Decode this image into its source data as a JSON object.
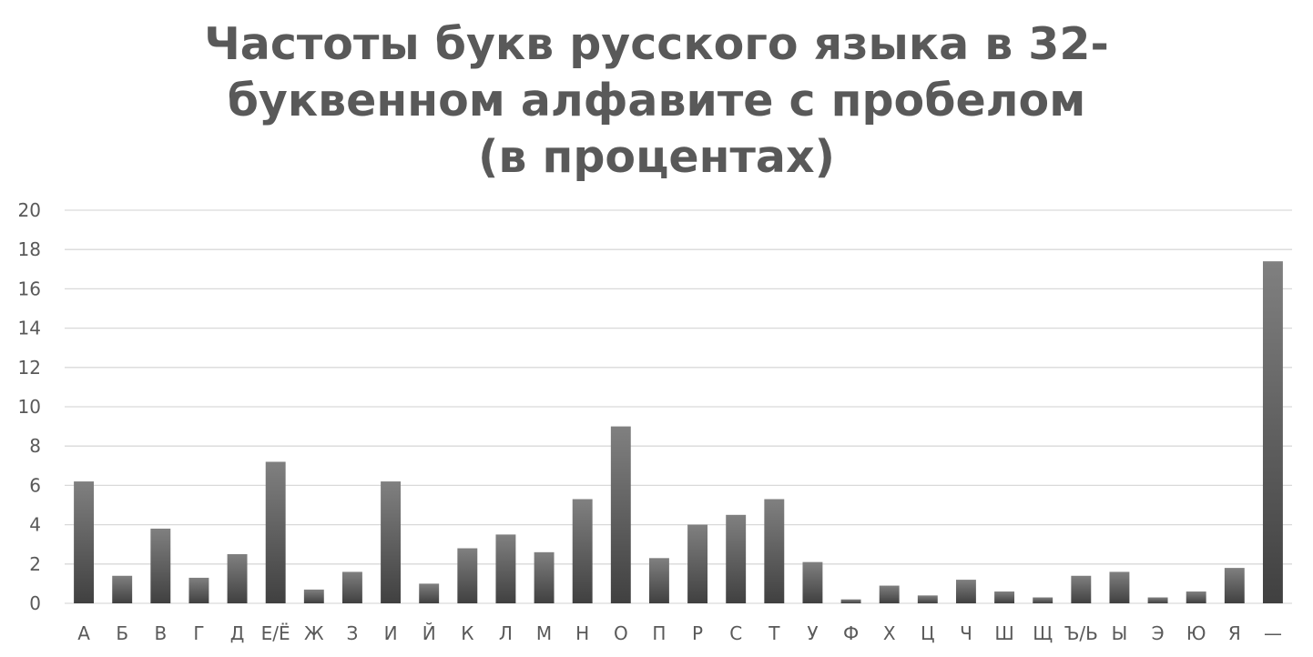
{
  "chart_data": {
    "type": "bar",
    "title": "Частоты букв русского языка в 32-\nбуквенном алфавите с пробелом\n(в процентах)",
    "xlabel": "",
    "ylabel": "",
    "ylim": [
      0,
      20
    ],
    "yticks": [
      0,
      2,
      4,
      6,
      8,
      10,
      12,
      14,
      16,
      18,
      20
    ],
    "grid": true,
    "legend": "none",
    "categories": [
      "А",
      "Б",
      "В",
      "Г",
      "Д",
      "Е/Ё",
      "Ж",
      "З",
      "И",
      "Й",
      "К",
      "Л",
      "М",
      "Н",
      "О",
      "П",
      "Р",
      "С",
      "Т",
      "У",
      "Ф",
      "Х",
      "Ц",
      "Ч",
      "Ш",
      "Щ",
      "Ъ/Ь",
      "Ы",
      "Э",
      "Ю",
      "Я",
      "—"
    ],
    "values": [
      6.2,
      1.4,
      3.8,
      1.3,
      2.5,
      7.2,
      0.7,
      1.6,
      6.2,
      1.0,
      2.8,
      3.5,
      2.6,
      5.3,
      9.0,
      2.3,
      4.0,
      4.5,
      5.3,
      2.1,
      0.2,
      0.9,
      0.4,
      1.2,
      0.6,
      0.3,
      1.4,
      1.6,
      0.3,
      0.6,
      1.8,
      17.4
    ],
    "colors": {
      "bar_top": "#808080",
      "bar_bottom": "#404040",
      "grid": "#d9d9d9",
      "text": "#595959"
    }
  }
}
